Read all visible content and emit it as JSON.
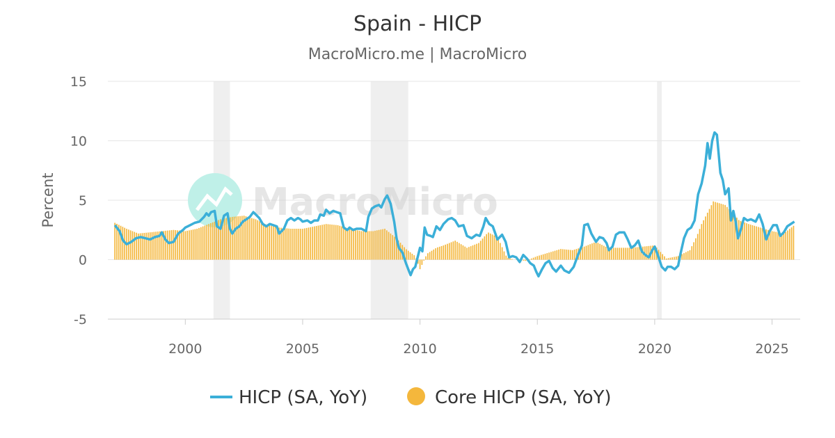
{
  "colors": {
    "hicp_line": "#3BAFD8",
    "core_bar": "#F4B73C",
    "recession": "#EFEFEF",
    "grid": "#E6E6E6",
    "watermark_circle": "#BFF0E8"
  },
  "watermark": {
    "text": "MacroMicro"
  },
  "chart_data": {
    "type": "bar+line",
    "title": "Spain - HICP",
    "subtitle": "MacroMicro.me | MacroMicro",
    "ylabel": "Percent",
    "xlabel": "",
    "ylim": [
      -5,
      15
    ],
    "xlim": [
      1996.7,
      2026.2
    ],
    "yticks": [
      15,
      10,
      5,
      0,
      -5
    ],
    "xticks": [
      2000,
      2005,
      2010,
      2015,
      2020,
      2025
    ],
    "recessions": [
      [
        2001.2,
        2001.9
      ],
      [
        2007.9,
        2009.5
      ],
      [
        2020.1,
        2020.3
      ]
    ],
    "legend_position": "bottom-center",
    "series": [
      {
        "name": "HICP (SA, YoY)",
        "kind": "line",
        "points": [
          [
            1997.0,
            2.9
          ],
          [
            1997.2,
            2.4
          ],
          [
            1997.35,
            1.6
          ],
          [
            1997.5,
            1.3
          ],
          [
            1997.7,
            1.5
          ],
          [
            1997.9,
            1.8
          ],
          [
            1998.1,
            1.9
          ],
          [
            1998.3,
            1.8
          ],
          [
            1998.5,
            1.7
          ],
          [
            1998.7,
            1.9
          ],
          [
            1998.9,
            2.0
          ],
          [
            1999.0,
            2.3
          ],
          [
            1999.15,
            1.7
          ],
          [
            1999.3,
            1.4
          ],
          [
            1999.5,
            1.5
          ],
          [
            1999.7,
            2.2
          ],
          [
            1999.9,
            2.5
          ],
          [
            2000.0,
            2.7
          ],
          [
            2000.2,
            2.9
          ],
          [
            2000.4,
            3.1
          ],
          [
            2000.6,
            3.2
          ],
          [
            2000.8,
            3.6
          ],
          [
            2000.9,
            3.9
          ],
          [
            2001.0,
            3.7
          ],
          [
            2001.1,
            4.0
          ],
          [
            2001.25,
            4.1
          ],
          [
            2001.35,
            2.8
          ],
          [
            2001.5,
            2.6
          ],
          [
            2001.65,
            3.7
          ],
          [
            2001.8,
            3.9
          ],
          [
            2001.9,
            2.6
          ],
          [
            2002.0,
            2.2
          ],
          [
            2002.15,
            2.6
          ],
          [
            2002.3,
            2.8
          ],
          [
            2002.45,
            3.2
          ],
          [
            2002.6,
            3.4
          ],
          [
            2002.75,
            3.6
          ],
          [
            2002.9,
            4.0
          ],
          [
            2003.0,
            3.8
          ],
          [
            2003.15,
            3.5
          ],
          [
            2003.3,
            3.0
          ],
          [
            2003.45,
            2.8
          ],
          [
            2003.6,
            3.0
          ],
          [
            2003.75,
            2.9
          ],
          [
            2003.9,
            2.8
          ],
          [
            2004.0,
            2.2
          ],
          [
            2004.2,
            2.6
          ],
          [
            2004.35,
            3.3
          ],
          [
            2004.5,
            3.5
          ],
          [
            2004.65,
            3.3
          ],
          [
            2004.8,
            3.5
          ],
          [
            2004.9,
            3.4
          ],
          [
            2005.0,
            3.2
          ],
          [
            2005.2,
            3.3
          ],
          [
            2005.35,
            3.1
          ],
          [
            2005.5,
            3.3
          ],
          [
            2005.65,
            3.3
          ],
          [
            2005.75,
            3.8
          ],
          [
            2005.9,
            3.7
          ],
          [
            2006.0,
            4.2
          ],
          [
            2006.15,
            3.9
          ],
          [
            2006.3,
            4.1
          ],
          [
            2006.45,
            4.0
          ],
          [
            2006.6,
            3.9
          ],
          [
            2006.75,
            2.7
          ],
          [
            2006.9,
            2.5
          ],
          [
            2007.0,
            2.7
          ],
          [
            2007.15,
            2.5
          ],
          [
            2007.3,
            2.6
          ],
          [
            2007.5,
            2.6
          ],
          [
            2007.7,
            2.4
          ],
          [
            2007.8,
            3.6
          ],
          [
            2007.95,
            4.3
          ],
          [
            2008.1,
            4.5
          ],
          [
            2008.25,
            4.6
          ],
          [
            2008.35,
            4.4
          ],
          [
            2008.5,
            5.1
          ],
          [
            2008.6,
            5.4
          ],
          [
            2008.75,
            4.7
          ],
          [
            2008.9,
            3.2
          ],
          [
            2009.0,
            1.8
          ],
          [
            2009.1,
            1.0
          ],
          [
            2009.25,
            0.6
          ],
          [
            2009.4,
            -0.3
          ],
          [
            2009.5,
            -0.8
          ],
          [
            2009.6,
            -1.3
          ],
          [
            2009.7,
            -0.8
          ],
          [
            2009.8,
            -0.6
          ],
          [
            2009.9,
            0.2
          ],
          [
            2010.0,
            1.0
          ],
          [
            2010.1,
            0.7
          ],
          [
            2010.2,
            2.7
          ],
          [
            2010.3,
            2.1
          ],
          [
            2010.45,
            2.0
          ],
          [
            2010.55,
            1.9
          ],
          [
            2010.7,
            2.8
          ],
          [
            2010.85,
            2.5
          ],
          [
            2011.0,
            3.0
          ],
          [
            2011.2,
            3.4
          ],
          [
            2011.35,
            3.5
          ],
          [
            2011.5,
            3.3
          ],
          [
            2011.65,
            2.8
          ],
          [
            2011.85,
            2.9
          ],
          [
            2012.0,
            2.0
          ],
          [
            2012.2,
            1.8
          ],
          [
            2012.4,
            2.1
          ],
          [
            2012.55,
            2.0
          ],
          [
            2012.7,
            2.8
          ],
          [
            2012.8,
            3.5
          ],
          [
            2012.95,
            3.0
          ],
          [
            2013.1,
            2.8
          ],
          [
            2013.3,
            1.7
          ],
          [
            2013.5,
            2.1
          ],
          [
            2013.65,
            1.5
          ],
          [
            2013.8,
            0.2
          ],
          [
            2013.95,
            0.3
          ],
          [
            2014.1,
            0.2
          ],
          [
            2014.25,
            -0.2
          ],
          [
            2014.4,
            0.4
          ],
          [
            2014.55,
            0.1
          ],
          [
            2014.7,
            -0.3
          ],
          [
            2014.85,
            -0.5
          ],
          [
            2014.95,
            -1.0
          ],
          [
            2015.05,
            -1.4
          ],
          [
            2015.2,
            -0.8
          ],
          [
            2015.35,
            -0.3
          ],
          [
            2015.5,
            -0.1
          ],
          [
            2015.65,
            -0.7
          ],
          [
            2015.8,
            -1.0
          ],
          [
            2016.0,
            -0.5
          ],
          [
            2016.15,
            -0.9
          ],
          [
            2016.35,
            -1.1
          ],
          [
            2016.55,
            -0.6
          ],
          [
            2016.75,
            0.5
          ],
          [
            2016.9,
            1.2
          ],
          [
            2017.0,
            2.9
          ],
          [
            2017.15,
            3.0
          ],
          [
            2017.3,
            2.2
          ],
          [
            2017.5,
            1.5
          ],
          [
            2017.65,
            1.9
          ],
          [
            2017.8,
            1.8
          ],
          [
            2017.95,
            1.4
          ],
          [
            2018.05,
            0.8
          ],
          [
            2018.2,
            1.1
          ],
          [
            2018.35,
            2.1
          ],
          [
            2018.5,
            2.3
          ],
          [
            2018.7,
            2.3
          ],
          [
            2018.85,
            1.7
          ],
          [
            2019.0,
            1.0
          ],
          [
            2019.15,
            1.2
          ],
          [
            2019.3,
            1.6
          ],
          [
            2019.45,
            0.7
          ],
          [
            2019.6,
            0.4
          ],
          [
            2019.75,
            0.2
          ],
          [
            2019.9,
            0.8
          ],
          [
            2020.0,
            1.1
          ],
          [
            2020.15,
            0.3
          ],
          [
            2020.3,
            -0.6
          ],
          [
            2020.45,
            -0.9
          ],
          [
            2020.55,
            -0.6
          ],
          [
            2020.7,
            -0.6
          ],
          [
            2020.85,
            -0.8
          ],
          [
            2021.0,
            -0.5
          ],
          [
            2021.1,
            0.5
          ],
          [
            2021.25,
            1.8
          ],
          [
            2021.4,
            2.5
          ],
          [
            2021.55,
            2.7
          ],
          [
            2021.7,
            3.3
          ],
          [
            2021.85,
            5.5
          ],
          [
            2022.0,
            6.4
          ],
          [
            2022.15,
            7.9
          ],
          [
            2022.25,
            9.8
          ],
          [
            2022.35,
            8.5
          ],
          [
            2022.45,
            10.0
          ],
          [
            2022.55,
            10.7
          ],
          [
            2022.65,
            10.5
          ],
          [
            2022.8,
            7.3
          ],
          [
            2022.9,
            6.7
          ],
          [
            2023.0,
            5.5
          ],
          [
            2023.15,
            6.0
          ],
          [
            2023.25,
            3.3
          ],
          [
            2023.35,
            4.1
          ],
          [
            2023.45,
            3.2
          ],
          [
            2023.55,
            1.8
          ],
          [
            2023.65,
            2.4
          ],
          [
            2023.8,
            3.5
          ],
          [
            2023.95,
            3.3
          ],
          [
            2024.1,
            3.4
          ],
          [
            2024.3,
            3.2
          ],
          [
            2024.45,
            3.8
          ],
          [
            2024.6,
            3.0
          ],
          [
            2024.75,
            1.7
          ],
          [
            2024.9,
            2.4
          ],
          [
            2025.05,
            2.9
          ],
          [
            2025.2,
            2.9
          ],
          [
            2025.35,
            2.0
          ],
          [
            2025.5,
            2.3
          ],
          [
            2025.65,
            2.8
          ],
          [
            2025.8,
            3.0
          ],
          [
            2025.95,
            3.2
          ]
        ]
      },
      {
        "name": "Core HICP (SA, YoY)",
        "kind": "bar",
        "points": [
          [
            1997.0,
            3.1
          ],
          [
            1997.5,
            2.6
          ],
          [
            1998.0,
            2.2
          ],
          [
            1998.5,
            2.3
          ],
          [
            1999.0,
            2.4
          ],
          [
            1999.5,
            2.5
          ],
          [
            2000.0,
            2.4
          ],
          [
            2000.5,
            2.6
          ],
          [
            2001.0,
            3.0
          ],
          [
            2001.5,
            3.4
          ],
          [
            2002.0,
            3.6
          ],
          [
            2002.5,
            3.7
          ],
          [
            2003.0,
            3.4
          ],
          [
            2003.5,
            2.9
          ],
          [
            2004.0,
            2.7
          ],
          [
            2004.5,
            2.6
          ],
          [
            2005.0,
            2.6
          ],
          [
            2005.5,
            2.8
          ],
          [
            2006.0,
            3.0
          ],
          [
            2006.5,
            2.9
          ],
          [
            2007.0,
            2.6
          ],
          [
            2007.5,
            2.4
          ],
          [
            2008.0,
            2.4
          ],
          [
            2008.5,
            2.6
          ],
          [
            2009.0,
            1.8
          ],
          [
            2009.4,
            0.9
          ],
          [
            2009.8,
            0.3
          ],
          [
            2010.0,
            -0.8
          ],
          [
            2010.3,
            0.5
          ],
          [
            2010.7,
            1.0
          ],
          [
            2011.0,
            1.2
          ],
          [
            2011.5,
            1.6
          ],
          [
            2012.0,
            1.0
          ],
          [
            2012.5,
            1.4
          ],
          [
            2012.9,
            2.3
          ],
          [
            2013.3,
            1.9
          ],
          [
            2013.7,
            0.2
          ],
          [
            2014.0,
            0.0
          ],
          [
            2014.5,
            -0.1
          ],
          [
            2015.0,
            0.3
          ],
          [
            2015.5,
            0.6
          ],
          [
            2016.0,
            0.9
          ],
          [
            2016.5,
            0.8
          ],
          [
            2017.0,
            1.1
          ],
          [
            2017.5,
            1.5
          ],
          [
            2018.0,
            1.0
          ],
          [
            2018.5,
            1.0
          ],
          [
            2019.0,
            1.0
          ],
          [
            2019.5,
            1.1
          ],
          [
            2020.0,
            1.2
          ],
          [
            2020.5,
            0.1
          ],
          [
            2021.0,
            0.3
          ],
          [
            2021.5,
            0.8
          ],
          [
            2021.8,
            2.0
          ],
          [
            2022.0,
            3.0
          ],
          [
            2022.5,
            4.9
          ],
          [
            2023.0,
            4.6
          ],
          [
            2023.3,
            4.0
          ],
          [
            2023.6,
            3.3
          ],
          [
            2024.0,
            3.0
          ],
          [
            2024.5,
            2.7
          ],
          [
            2025.0,
            2.4
          ],
          [
            2025.5,
            2.2
          ],
          [
            2025.95,
            2.9
          ]
        ]
      }
    ]
  }
}
